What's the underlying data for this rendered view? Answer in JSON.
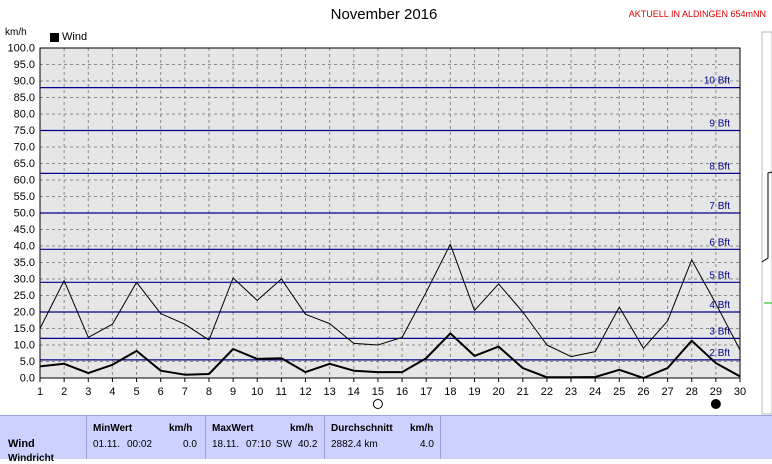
{
  "title": "November 2016",
  "station": "AKTUELL IN ALDINGEN 654mNN",
  "chart_data": {
    "type": "line",
    "ylabel": "km/h",
    "ylim": [
      0,
      100
    ],
    "xlim": [
      1,
      30
    ],
    "y_ticks": [
      "0.0",
      "5.0",
      "10.0",
      "15.0",
      "20.0",
      "25.0",
      "30.0",
      "35.0",
      "40.0",
      "45.0",
      "50.0",
      "55.0",
      "60.0",
      "65.0",
      "70.0",
      "75.0",
      "80.0",
      "85.0",
      "90.0",
      "95.0",
      "100.0"
    ],
    "x_ticks": [
      "1",
      "2",
      "3",
      "4",
      "5",
      "6",
      "7",
      "8",
      "9",
      "10",
      "11",
      "12",
      "13",
      "14",
      "15",
      "16",
      "17",
      "18",
      "19",
      "20",
      "21",
      "22",
      "23",
      "24",
      "25",
      "26",
      "27",
      "28",
      "29",
      "30"
    ],
    "x": [
      1,
      2,
      3,
      4,
      5,
      6,
      7,
      8,
      9,
      10,
      11,
      12,
      13,
      14,
      15,
      16,
      17,
      18,
      19,
      20,
      21,
      22,
      23,
      24,
      25,
      26,
      27,
      28,
      29,
      30
    ],
    "series": [
      {
        "name": "Wind",
        "role": "average",
        "color": "#000000",
        "values": [
          3.5,
          4.3,
          1.5,
          4,
          8.2,
          2.2,
          1,
          1.2,
          8.8,
          5.8,
          6,
          1.8,
          4.3,
          2.2,
          1.8,
          1.8,
          6,
          13.5,
          6.7,
          9.5,
          3,
          0.2,
          0.2,
          0.3,
          2.5,
          0,
          3,
          11.3,
          4.5,
          0.5
        ]
      },
      {
        "role": "gust",
        "color": "#000000",
        "values": [
          15,
          29.5,
          12.3,
          16.3,
          29,
          19.5,
          16.3,
          11.5,
          30.3,
          23.5,
          30,
          19.3,
          16.5,
          10.5,
          10,
          12.3,
          26,
          40.5,
          20.5,
          28.5,
          20,
          10,
          6.5,
          8,
          21.5,
          9,
          17.3,
          35.8,
          22.5,
          8.5
        ]
      }
    ],
    "beaufort_lines": [
      {
        "label": "2 Bft",
        "value": 5.5
      },
      {
        "label": "3 Bft",
        "value": 12
      },
      {
        "label": "4 Bft",
        "value": 20
      },
      {
        "label": "5 Bft",
        "value": 29
      },
      {
        "label": "6 Bft",
        "value": 39
      },
      {
        "label": "7 Bft",
        "value": 50
      },
      {
        "label": "8 Bft",
        "value": 62
      },
      {
        "label": "9 Bft",
        "value": 75
      },
      {
        "label": "10 Bft",
        "value": 88
      }
    ],
    "moon_phases": [
      {
        "day": 15,
        "phase": "full"
      },
      {
        "day": 29,
        "phase": "new"
      }
    ],
    "grid": true,
    "legend": "top-left"
  },
  "stats": {
    "row_label": "Wind",
    "row_label2": "Windricht",
    "min": {
      "header": "MinWert",
      "unit": "km/h",
      "date": "01.11.",
      "time": "00:02",
      "value": "0.0"
    },
    "max": {
      "header": "MaxWert",
      "unit": "km/h",
      "date": "18.11.",
      "time": "07:10",
      "dir": "SW",
      "value": "40.2"
    },
    "avg": {
      "header": "Durchschnitt",
      "unit": "km/h",
      "distance": "2882.4 km",
      "value": "4.0"
    }
  },
  "colors": {
    "plot_bg": "#e6e6e6",
    "grid": "#8c8c8c",
    "beaufort": "#00008b",
    "stats_bg": "#ccd1ff",
    "station": "#e00000"
  }
}
